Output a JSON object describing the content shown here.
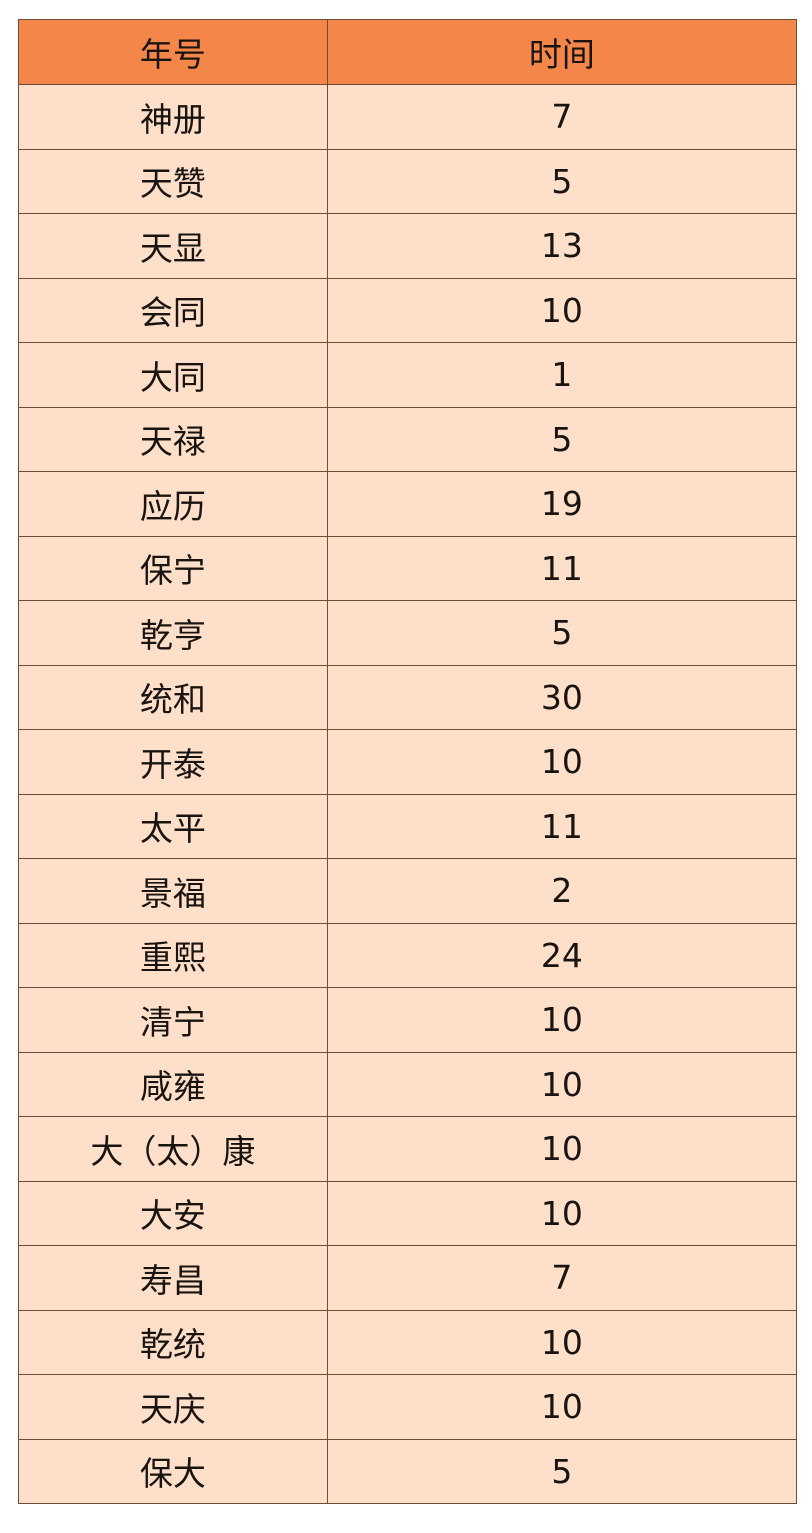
{
  "table": {
    "headers": [
      "年号",
      "时间"
    ],
    "rows": [
      [
        "神册",
        "7"
      ],
      [
        "天赞",
        "5"
      ],
      [
        "天显",
        "13"
      ],
      [
        "会同",
        "10"
      ],
      [
        "大同",
        "1"
      ],
      [
        "天禄",
        "5"
      ],
      [
        "应历",
        "19"
      ],
      [
        "保宁",
        "11"
      ],
      [
        "乾亨",
        "5"
      ],
      [
        "统和",
        "30"
      ],
      [
        "开泰",
        "10"
      ],
      [
        "太平",
        "11"
      ],
      [
        "景福",
        "2"
      ],
      [
        "重熙",
        "24"
      ],
      [
        "清宁",
        "10"
      ],
      [
        "咸雍",
        "10"
      ],
      [
        "大（太）康",
        "10"
      ],
      [
        "大安",
        "10"
      ],
      [
        "寿昌",
        "7"
      ],
      [
        "乾统",
        "10"
      ],
      [
        "天庆",
        "10"
      ],
      [
        "保大",
        "5"
      ]
    ]
  },
  "colors": {
    "header_bg": "#F5864A",
    "body_bg": "#FDDFCA",
    "border": "#6E4C3A"
  }
}
